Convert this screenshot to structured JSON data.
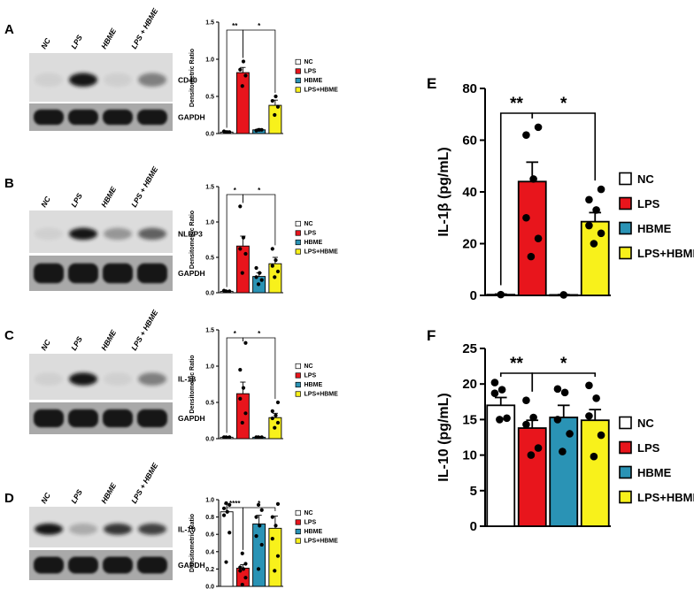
{
  "colors": {
    "NC": "#ffffff",
    "LPS": "#e8151c",
    "HBME": "#2a93b5",
    "LPS+HBME": "#f8f11b",
    "axis": "#000000"
  },
  "blot_lanes": [
    "NC",
    "LPS",
    "HBME",
    "LPS + HBME"
  ],
  "chart_data": [
    {
      "panel": "A",
      "type": "bar",
      "categories": [
        "NC",
        "LPS",
        "HBME",
        "LPS+HBME"
      ],
      "values": [
        0.02,
        0.82,
        0.05,
        0.38
      ],
      "errors": [
        0.01,
        0.07,
        0.01,
        0.07
      ],
      "points": [
        [
          0.02,
          0.02,
          0.03,
          0.02
        ],
        [
          0.64,
          0.78,
          0.86,
          0.97
        ],
        [
          0.05,
          0.05,
          0.04,
          0.05
        ],
        [
          0.25,
          0.36,
          0.44,
          0.5
        ]
      ],
      "ylabel": "Densitometric Ratio",
      "ylim": [
        0,
        1.5
      ],
      "yticks": [
        "0.0",
        "0.5",
        "1.0",
        "1.5"
      ],
      "legend": [
        "NC",
        "LPS",
        "HBME",
        "LPS+HBME"
      ],
      "sig": [
        {
          "from": 0,
          "to": 1,
          "label": "**"
        },
        {
          "from": 1,
          "to": 3,
          "label": "*"
        }
      ],
      "blot_protein": "CD40",
      "blot_loading": "GAPDH"
    },
    {
      "panel": "B",
      "type": "bar",
      "categories": [
        "NC",
        "LPS",
        "HBME",
        "LPS+HBME"
      ],
      "values": [
        0.02,
        0.66,
        0.23,
        0.41
      ],
      "errors": [
        0.01,
        0.14,
        0.05,
        0.09
      ],
      "points": [
        [
          0.02,
          0.02,
          0.03
        ],
        [
          0.28,
          0.55,
          0.62,
          0.78,
          1.22
        ],
        [
          0.12,
          0.18,
          0.22,
          0.28,
          0.35
        ],
        [
          0.22,
          0.3,
          0.38,
          0.46,
          0.62
        ]
      ],
      "ylabel": "Densitometric Ratio",
      "ylim": [
        0,
        1.5
      ],
      "yticks": [
        "0.0",
        "0.5",
        "1.0",
        "1.5"
      ],
      "legend": [
        "NC",
        "LPS",
        "HBME",
        "LPS+HBME"
      ],
      "sig": [
        {
          "from": 0,
          "to": 1,
          "label": "*"
        },
        {
          "from": 1,
          "to": 3,
          "label": "*"
        }
      ],
      "blot_protein": "NLRP3",
      "blot_loading": "GAPDH"
    },
    {
      "panel": "C",
      "type": "bar",
      "categories": [
        "NC",
        "LPS",
        "HBME",
        "LPS+HBME"
      ],
      "values": [
        0.02,
        0.62,
        0.02,
        0.29
      ],
      "errors": [
        0.01,
        0.16,
        0.01,
        0.06
      ],
      "points": [
        [
          0.02,
          0.02,
          0.02
        ],
        [
          0.22,
          0.35,
          0.55,
          0.7,
          0.95,
          1.32
        ],
        [
          0.02,
          0.02,
          0.02
        ],
        [
          0.15,
          0.22,
          0.28,
          0.32,
          0.38,
          0.5
        ]
      ],
      "ylabel": "Densitometric Ratio",
      "ylim": [
        0,
        1.5
      ],
      "yticks": [
        "0.0",
        "0.5",
        "1.0",
        "1.5"
      ],
      "legend": [
        "NC",
        "LPS",
        "HBME",
        "LPS+HBME"
      ],
      "sig": [
        {
          "from": 0,
          "to": 1,
          "label": "*"
        },
        {
          "from": 1,
          "to": 3,
          "label": "*"
        }
      ],
      "blot_protein": "IL-1β",
      "blot_loading": "GAPDH"
    },
    {
      "panel": "D",
      "type": "bar",
      "categories": [
        "NC",
        "LPS",
        "HBME",
        "LPS+HBME"
      ],
      "values": [
        0.86,
        0.21,
        0.72,
        0.67
      ],
      "errors": [
        0.09,
        0.04,
        0.1,
        0.14
      ],
      "points": [
        [
          0.28,
          0.62,
          0.82,
          0.86,
          0.9,
          0.94,
          0.96
        ],
        [
          0.02,
          0.1,
          0.18,
          0.2,
          0.22,
          0.26,
          0.38
        ],
        [
          0.2,
          0.48,
          0.58,
          0.7,
          0.8,
          0.88,
          0.94
        ],
        [
          0.18,
          0.35,
          0.55,
          0.7,
          0.8,
          0.95
        ]
      ],
      "ylabel": "Densitometric Ratio",
      "ylim": [
        0,
        1.0
      ],
      "yticks": [
        "0.0",
        "0.2",
        "0.4",
        "0.6",
        "0.8",
        "1.0"
      ],
      "legend": [
        "NC",
        "LPS",
        "HBME",
        "LPS+HBME"
      ],
      "sig": [
        {
          "from": 0,
          "to": 1,
          "label": "****"
        },
        {
          "from": 1,
          "to": 3,
          "label": "*"
        }
      ],
      "blot_protein": "IL-10",
      "blot_loading": "GAPDH"
    },
    {
      "panel": "E",
      "type": "bar",
      "categories": [
        "NC",
        "LPS",
        "HBME",
        "LPS+HBME"
      ],
      "values": [
        0.3,
        44,
        0.2,
        28.5
      ],
      "errors": [
        0.2,
        7.5,
        0.1,
        3.5
      ],
      "points": [
        [
          0.3
        ],
        [
          15,
          22,
          30,
          45,
          62,
          65
        ],
        [
          0.2
        ],
        [
          20,
          24,
          27,
          33,
          37,
          41
        ]
      ],
      "ylabel": "IL-1β (pg/mL)",
      "ylim": [
        0,
        80
      ],
      "yticks": [
        "0",
        "20",
        "40",
        "60",
        "80"
      ],
      "legend": [
        "NC",
        "LPS",
        "HBME",
        "LPS+HBME"
      ],
      "sig": [
        {
          "from": 0,
          "to": 1,
          "label": "**"
        },
        {
          "from": 1,
          "to": 3,
          "label": "*"
        }
      ]
    },
    {
      "panel": "F",
      "type": "bar",
      "categories": [
        "NC",
        "LPS",
        "HBME",
        "LPS+HBME"
      ],
      "values": [
        17,
        13.8,
        15.3,
        14.9
      ],
      "errors": [
        1.1,
        1.1,
        1.7,
        1.5
      ],
      "points": [
        [
          15,
          15.2,
          18.7,
          19.2,
          20.2
        ],
        [
          10,
          11,
          14.3,
          15.3,
          17.7
        ],
        [
          10.5,
          13,
          15,
          18.8,
          19.3
        ],
        [
          9.8,
          12.8,
          15.5,
          18,
          19.8
        ]
      ],
      "ylabel": "IL-10 (pg/mL)",
      "ylim": [
        0,
        25
      ],
      "yticks": [
        "0",
        "5",
        "10",
        "15",
        "20",
        "25"
      ],
      "legend": [
        "NC",
        "LPS",
        "HBME",
        "LPS+HBME"
      ],
      "sig": [
        {
          "from": 0,
          "to": 1,
          "label": "**"
        },
        {
          "from": 1,
          "to": 3,
          "label": "*"
        }
      ]
    }
  ]
}
